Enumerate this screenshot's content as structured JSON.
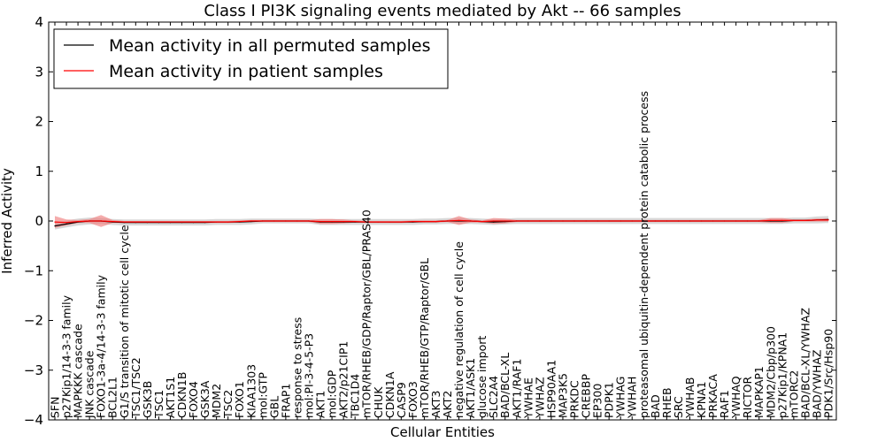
{
  "chart_data": {
    "type": "line",
    "title": "Class I PI3K signaling events mediated by Akt -- 66 samples",
    "xlabel": "Cellular Entities",
    "ylabel": "Inferred Activity",
    "ylim": [
      -4,
      4
    ],
    "yticks": [
      -4,
      -3,
      -2,
      -1,
      0,
      1,
      2,
      3,
      4
    ],
    "ytick_labels": [
      "−4",
      "−3",
      "−2",
      "−1",
      "0",
      "1",
      "2",
      "3",
      "4"
    ],
    "legend": {
      "placement": "top-left",
      "entries": [
        {
          "label": "Mean activity in all permuted samples",
          "color": "#000000"
        },
        {
          "label": "Mean activity in patient samples",
          "color": "#ff0000"
        }
      ]
    },
    "categories": [
      "SFN",
      "p27Kip1/14-3-3 family",
      "MAPKKK cascade",
      "JNK cascade",
      "FOXO1-3a-4/14-3-3 family",
      "BCL2L1",
      "G1/S transition of mitotic cell cycle",
      "TSC1/TSC2",
      "GSK3B",
      "TSC1",
      "AKT1S1",
      "CDKN1B",
      "FOXO4",
      "GSK3A",
      "MDM2",
      "TSC2",
      "FOXO1",
      "KIAA1303",
      "mol:GTP",
      "GBL",
      "FRAP1",
      "response to stress",
      "mol:PI-3-4-5-P3",
      "AKT1",
      "mol:GDP",
      "AKT2/p21CIP1",
      "TBC1D4",
      "mTOR/RHEB/GDP/Raptor/GBL/PRAS40",
      "CHUK",
      "CDKN1A",
      "CASP9",
      "FOXO3",
      "mTOR/RHEB/GTP/Raptor/GBL",
      "AKT3",
      "AKT2",
      "negative regulation of cell cycle",
      "AKT1/ASK1",
      "glucose import",
      "SLC2A4",
      "BAD/BCL-XL",
      "AKT1/RAF1",
      "YWHAE",
      "YWHAZ",
      "HSP90AA1",
      "MAP3K5",
      "PRKDC",
      "CREBBP",
      "EP300",
      "PDPK1",
      "YWHAG",
      "YWHAH",
      "proteasomal ubiquitin-dependent protein catabolic process",
      "BAD",
      "RHEB",
      "SRC",
      "YWHAB",
      "KPNA1",
      "PRKACA",
      "RAF1",
      "YWHAQ",
      "RICTOR",
      "MAPKAP1",
      "MDM2/Cbp/p300",
      "p27Kip1/KPNA1",
      "mTORC2",
      "BAD/BCL-XL/YWHAZ",
      "BAD/YWHAZ",
      "PDK1/Src/Hsp90"
    ],
    "series": [
      {
        "name": "Mean activity in all permuted samples",
        "color": "#000000",
        "band_color": "#c8c8c8",
        "values": [
          -0.1,
          -0.06,
          -0.02,
          0.0,
          0.0,
          -0.02,
          -0.03,
          -0.03,
          -0.03,
          -0.03,
          -0.03,
          -0.03,
          -0.03,
          -0.03,
          -0.02,
          -0.02,
          -0.02,
          -0.01,
          0.0,
          0.0,
          0.0,
          0.0,
          0.0,
          -0.02,
          -0.02,
          -0.02,
          -0.02,
          -0.02,
          -0.02,
          -0.02,
          -0.02,
          -0.02,
          -0.01,
          -0.01,
          0.0,
          0.0,
          0.0,
          -0.01,
          -0.02,
          -0.01,
          0.0,
          0.0,
          0.0,
          0.0,
          0.0,
          0.0,
          0.0,
          0.0,
          0.0,
          0.0,
          0.0,
          0.0,
          0.0,
          0.0,
          0.0,
          0.0,
          0.0,
          0.0,
          0.0,
          0.0,
          0.0,
          0.0,
          0.0,
          0.0,
          0.01,
          0.01,
          0.02,
          0.03
        ],
        "band": [
          0.07,
          0.07,
          0.07,
          0.07,
          0.06,
          0.06,
          0.06,
          0.06,
          0.06,
          0.06,
          0.06,
          0.06,
          0.06,
          0.06,
          0.06,
          0.06,
          0.06,
          0.06,
          0.05,
          0.05,
          0.05,
          0.05,
          0.05,
          0.06,
          0.06,
          0.06,
          0.06,
          0.06,
          0.06,
          0.06,
          0.06,
          0.06,
          0.06,
          0.06,
          0.06,
          0.06,
          0.06,
          0.06,
          0.06,
          0.06,
          0.06,
          0.06,
          0.06,
          0.06,
          0.06,
          0.06,
          0.06,
          0.06,
          0.06,
          0.06,
          0.06,
          0.06,
          0.06,
          0.06,
          0.06,
          0.06,
          0.06,
          0.06,
          0.06,
          0.06,
          0.06,
          0.06,
          0.06,
          0.06,
          0.06,
          0.06,
          0.07,
          0.07
        ]
      },
      {
        "name": "Mean activity in patient samples",
        "color": "#ff0000",
        "band_color": "#f08080",
        "values": [
          -0.02,
          -0.03,
          -0.01,
          0.0,
          0.0,
          -0.01,
          -0.02,
          -0.02,
          -0.02,
          -0.02,
          -0.02,
          -0.02,
          -0.02,
          -0.02,
          -0.02,
          -0.02,
          -0.01,
          0.0,
          0.0,
          0.0,
          0.0,
          0.0,
          0.0,
          -0.01,
          -0.01,
          -0.01,
          -0.01,
          -0.02,
          -0.02,
          -0.02,
          -0.02,
          -0.01,
          -0.01,
          -0.01,
          0.0,
          0.01,
          0.0,
          -0.01,
          0.0,
          0.0,
          0.0,
          0.0,
          0.0,
          0.0,
          0.0,
          0.0,
          0.0,
          0.0,
          0.0,
          0.0,
          0.0,
          0.0,
          0.0,
          0.0,
          0.0,
          0.0,
          0.0,
          0.0,
          0.0,
          0.0,
          0.0,
          0.0,
          0.01,
          0.01,
          0.01,
          0.01,
          0.02,
          0.02
        ],
        "band": [
          0.12,
          0.06,
          0.03,
          0.04,
          0.12,
          0.03,
          0.02,
          0.02,
          0.02,
          0.02,
          0.02,
          0.02,
          0.02,
          0.02,
          0.02,
          0.02,
          0.02,
          0.02,
          0.02,
          0.02,
          0.02,
          0.02,
          0.02,
          0.05,
          0.05,
          0.04,
          0.02,
          0.02,
          0.02,
          0.02,
          0.02,
          0.02,
          0.02,
          0.02,
          0.02,
          0.09,
          0.03,
          0.02,
          0.06,
          0.05,
          0.02,
          0.02,
          0.02,
          0.02,
          0.02,
          0.02,
          0.02,
          0.02,
          0.02,
          0.02,
          0.02,
          0.02,
          0.02,
          0.02,
          0.02,
          0.02,
          0.02,
          0.02,
          0.02,
          0.02,
          0.02,
          0.02,
          0.05,
          0.05,
          0.02,
          0.02,
          0.03,
          0.03
        ]
      }
    ]
  }
}
